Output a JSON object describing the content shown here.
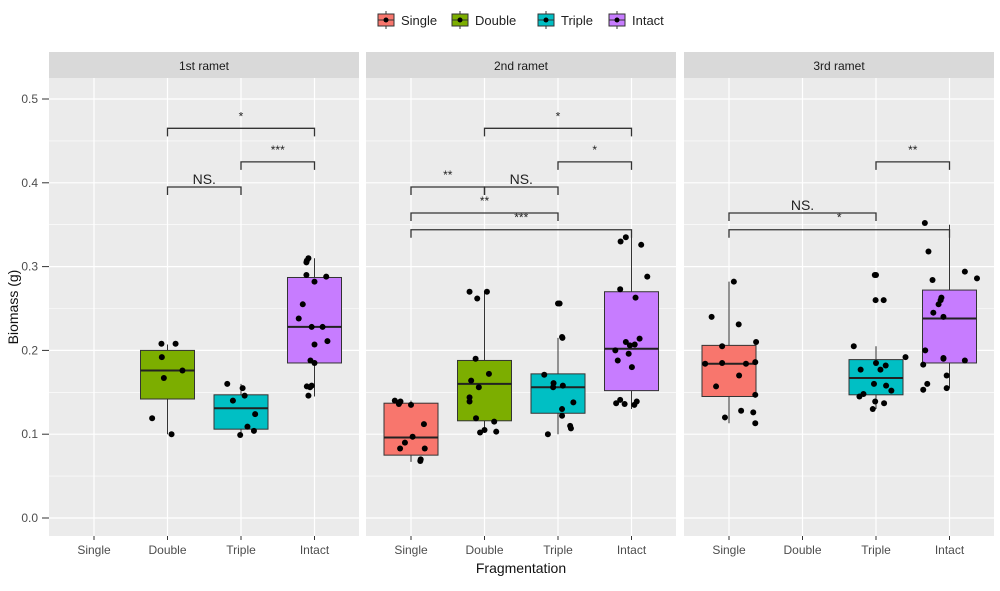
{
  "chart_data": {
    "type": "boxplot",
    "xlabel": "Fragmentation",
    "ylabel": "Biomass (g)",
    "ylim": [
      -0.02,
      0.52
    ],
    "yticks": [
      0.0,
      0.1,
      0.2,
      0.3,
      0.4,
      0.5
    ],
    "ytick_labels": [
      "0.0",
      "0.1",
      "0.2",
      "0.3",
      "0.4",
      "0.5"
    ],
    "categories": [
      "Single",
      "Double",
      "Triple",
      "Intact"
    ],
    "grid": true,
    "legend": {
      "placement": "top",
      "entries": [
        "Single",
        "Double",
        "Triple",
        "Intact"
      ]
    },
    "colors": {
      "Single": "#F8766D",
      "Double": "#7CAE00",
      "Triple": "#00BFC4",
      "Intact": "#C77CFF"
    },
    "panels": [
      {
        "title": "1st ramet",
        "boxes": [
          {
            "group": "Double",
            "min": 0.1,
            "q1": 0.142,
            "median": 0.176,
            "q3": 0.2,
            "max": 0.207,
            "points": [
              [
                -0.15,
                0.208
              ],
              [
                0.2,
                0.208
              ],
              [
                -0.14,
                0.192
              ],
              [
                -0.09,
                0.167
              ],
              [
                0.37,
                0.176
              ],
              [
                -0.38,
                0.119
              ],
              [
                0.1,
                0.1
              ]
            ]
          },
          {
            "group": "Triple",
            "min": 0.102,
            "q1": 0.106,
            "median": 0.131,
            "q3": 0.147,
            "max": 0.16,
            "points": [
              [
                -0.34,
                0.16
              ],
              [
                -0.2,
                0.14
              ],
              [
                0.04,
                0.155
              ],
              [
                0.09,
                0.146
              ],
              [
                0.35,
                0.124
              ],
              [
                0.16,
                0.109
              ],
              [
                0.32,
                0.104
              ],
              [
                -0.02,
                0.099
              ]
            ]
          },
          {
            "group": "Intact",
            "min": 0.145,
            "q1": 0.185,
            "median": 0.228,
            "q3": 0.287,
            "max": 0.31,
            "points": [
              [
                -0.2,
                0.305
              ],
              [
                -0.15,
                0.31
              ],
              [
                -0.19,
                0.307
              ],
              [
                -0.2,
                0.29
              ],
              [
                0,
                0.282
              ],
              [
                0.29,
                0.288
              ],
              [
                -0.39,
                0.238
              ],
              [
                -0.29,
                0.255
              ],
              [
                -0.07,
                0.228
              ],
              [
                0.2,
                0.228
              ],
              [
                0,
                0.207
              ],
              [
                0.32,
                0.211
              ],
              [
                -0.1,
                0.188
              ],
              [
                0,
                0.185
              ],
              [
                -0.19,
                0.157
              ],
              [
                -0.11,
                0.156
              ],
              [
                -0.07,
                0.158
              ],
              [
                -0.15,
                0.146
              ]
            ]
          }
        ],
        "brackets": [
          {
            "from": "Double",
            "to": "Intact",
            "y": 0.465,
            "label": "*"
          },
          {
            "from": "Triple",
            "to": "Intact",
            "y": 0.425,
            "label": "***"
          },
          {
            "from": "Double",
            "to": "Triple",
            "y": 0.395,
            "label": "NS."
          }
        ]
      },
      {
        "title": "2nd ramet",
        "boxes": [
          {
            "group": "Single",
            "min": 0.067,
            "q1": 0.075,
            "median": 0.096,
            "q3": 0.137,
            "max": 0.14,
            "points": [
              [
                -0.4,
                0.14
              ],
              [
                -0.28,
                0.138
              ],
              [
                -0.26,
                0.139
              ],
              [
                -0.3,
                0.136
              ],
              [
                0,
                0.135
              ],
              [
                0.32,
                0.112
              ],
              [
                0.04,
                0.097
              ],
              [
                -0.15,
                0.09
              ],
              [
                -0.27,
                0.083
              ],
              [
                0.34,
                0.083
              ],
              [
                0.24,
                0.07
              ],
              [
                0.23,
                0.068
              ]
            ]
          },
          {
            "group": "Double",
            "min": 0.103,
            "q1": 0.116,
            "median": 0.16,
            "q3": 0.188,
            "max": 0.27,
            "points": [
              [
                -0.37,
                0.27
              ],
              [
                0.06,
                0.27
              ],
              [
                -0.18,
                0.262
              ],
              [
                -0.22,
                0.19
              ],
              [
                0.11,
                0.172
              ],
              [
                -0.33,
                0.164
              ],
              [
                -0.14,
                0.156
              ],
              [
                -0.37,
                0.144
              ],
              [
                -0.37,
                0.139
              ],
              [
                -0.21,
                0.119
              ],
              [
                0.24,
                0.115
              ],
              [
                0,
                0.105
              ],
              [
                -0.11,
                0.102
              ],
              [
                0.29,
                0.103
              ]
            ]
          },
          {
            "group": "Triple",
            "min": 0.1,
            "q1": 0.125,
            "median": 0.156,
            "q3": 0.172,
            "max": 0.215,
            "points": [
              [
                0,
                0.256
              ],
              [
                0.04,
                0.256
              ],
              [
                0.1,
                0.216
              ],
              [
                0.11,
                0.215
              ],
              [
                -0.34,
                0.171
              ],
              [
                -0.11,
                0.161
              ],
              [
                -0.12,
                0.156
              ],
              [
                0.12,
                0.158
              ],
              [
                0.38,
                0.138
              ],
              [
                0.1,
                0.13
              ],
              [
                0.1,
                0.122
              ],
              [
                0.3,
                0.11
              ],
              [
                0.32,
                0.107
              ],
              [
                -0.25,
                0.1
              ]
            ]
          },
          {
            "group": "Intact",
            "min": 0.13,
            "q1": 0.152,
            "median": 0.202,
            "q3": 0.27,
            "max": 0.335,
            "points": [
              [
                -0.27,
                0.33
              ],
              [
                -0.14,
                0.335
              ],
              [
                0.24,
                0.326
              ],
              [
                0.39,
                0.288
              ],
              [
                -0.28,
                0.273
              ],
              [
                0.1,
                0.263
              ],
              [
                -0.14,
                0.21
              ],
              [
                -0.04,
                0.206
              ],
              [
                0.08,
                0.207
              ],
              [
                0.2,
                0.214
              ],
              [
                -0.4,
                0.2
              ],
              [
                -0.34,
                0.188
              ],
              [
                -0.07,
                0.196
              ],
              [
                0.01,
                0.18
              ],
              [
                -0.38,
                0.137
              ],
              [
                -0.28,
                0.141
              ],
              [
                -0.17,
                0.136
              ],
              [
                0.07,
                0.135
              ],
              [
                0.13,
                0.139
              ]
            ]
          }
        ],
        "brackets": [
          {
            "from": "Double",
            "to": "Intact",
            "y": 0.465,
            "label": "*"
          },
          {
            "from": "Triple",
            "to": "Intact",
            "y": 0.425,
            "label": "*"
          },
          {
            "from": "Single",
            "to": "Double",
            "y": 0.395,
            "label": "**"
          },
          {
            "from": "Double",
            "to": "Triple",
            "y": 0.395,
            "label": "NS."
          },
          {
            "from": "Single",
            "to": "Triple",
            "y": 0.364,
            "label": "**"
          },
          {
            "from": "Single",
            "to": "Intact",
            "y": 0.344,
            "label": "***"
          }
        ]
      },
      {
        "title": "3rd ramet",
        "boxes": [
          {
            "group": "Single",
            "min": 0.113,
            "q1": 0.145,
            "median": 0.184,
            "q3": 0.206,
            "max": 0.282,
            "points": [
              [
                0.12,
                0.282
              ],
              [
                -0.43,
                0.24
              ],
              [
                0.24,
                0.231
              ],
              [
                -0.17,
                0.205
              ],
              [
                0.67,
                0.21
              ],
              [
                -0.59,
                0.184
              ],
              [
                -0.17,
                0.185
              ],
              [
                0.42,
                0.184
              ],
              [
                0.65,
                0.186
              ],
              [
                0.25,
                0.17
              ],
              [
                -0.32,
                0.157
              ],
              [
                0.65,
                0.147
              ],
              [
                0.3,
                0.128
              ],
              [
                0.6,
                0.126
              ],
              [
                -0.1,
                0.12
              ],
              [
                0.65,
                0.113
              ]
            ]
          },
          {
            "group": "Triple",
            "min": 0.13,
            "q1": 0.147,
            "median": 0.167,
            "q3": 0.189,
            "max": 0.205,
            "points": [
              [
                -0.03,
                0.29
              ],
              [
                0,
                0.29
              ],
              [
                -0.01,
                0.26
              ],
              [
                0.19,
                0.26
              ],
              [
                -0.55,
                0.205
              ],
              [
                0.73,
                0.192
              ],
              [
                0,
                0.185
              ],
              [
                -0.38,
                0.177
              ],
              [
                0.11,
                0.177
              ],
              [
                0.24,
                0.182
              ],
              [
                0.25,
                0.158
              ],
              [
                0.38,
                0.152
              ],
              [
                -0.41,
                0.145
              ],
              [
                -0.31,
                0.148
              ],
              [
                -0.05,
                0.16
              ],
              [
                -0.02,
                0.139
              ],
              [
                0.2,
                0.137
              ],
              [
                -0.08,
                0.13
              ]
            ]
          },
          {
            "group": "Intact",
            "min": 0.155,
            "q1": 0.185,
            "median": 0.238,
            "q3": 0.272,
            "max": 0.35,
            "points": [
              [
                -0.61,
                0.352
              ],
              [
                -0.52,
                0.318
              ],
              [
                0.38,
                0.294
              ],
              [
                0.68,
                0.286
              ],
              [
                -0.42,
                0.284
              ],
              [
                -0.2,
                0.263
              ],
              [
                -0.22,
                0.26
              ],
              [
                -0.27,
                0.255
              ],
              [
                -0.4,
                0.245
              ],
              [
                -0.15,
                0.24
              ],
              [
                -0.6,
                0.2
              ],
              [
                -0.15,
                0.191
              ],
              [
                -0.15,
                0.19
              ],
              [
                0.38,
                0.188
              ],
              [
                -0.65,
                0.183
              ],
              [
                -0.07,
                0.17
              ],
              [
                -0.55,
                0.16
              ],
              [
                -0.65,
                0.153
              ],
              [
                -0.07,
                0.155
              ]
            ]
          }
        ],
        "brackets": [
          {
            "from": "Triple",
            "to": "Intact",
            "y": 0.425,
            "label": "**"
          },
          {
            "from": "Single",
            "to": "Triple",
            "y": 0.364,
            "label": "NS."
          },
          {
            "from": "Single",
            "to": "Intact",
            "y": 0.344,
            "label": "*"
          }
        ]
      }
    ]
  }
}
